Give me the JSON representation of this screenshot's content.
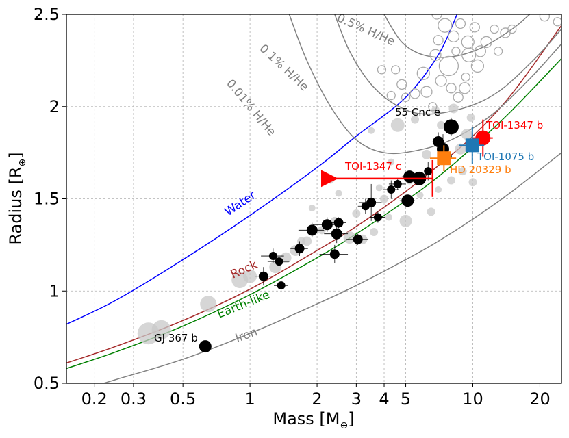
{
  "chart_data": {
    "type": "scatter",
    "xlabel": "Mass [M",
    "xlabel_sub": "⊕",
    "xlabel_end": "]",
    "ylabel": "Radius [R",
    "ylabel_sub": "⊕",
    "ylabel_end": "]",
    "x_scale": "log",
    "xlim": [
      0.15,
      25
    ],
    "ylim": [
      0.5,
      2.5
    ],
    "grid": true,
    "x_ticks": [
      {
        "value": 0.2,
        "label": "0.2"
      },
      {
        "value": 0.3,
        "label": "0.3"
      },
      {
        "value": 0.5,
        "label": "0.5"
      },
      {
        "value": 1,
        "label": "1"
      },
      {
        "value": 2,
        "label": "2"
      },
      {
        "value": 3,
        "label": "3"
      },
      {
        "value": 4,
        "label": "4"
      },
      {
        "value": 5,
        "label": "5"
      },
      {
        "value": 10,
        "label": "10"
      },
      {
        "value": 20,
        "label": "20"
      }
    ],
    "y_ticks": [
      {
        "value": 0.5,
        "label": "0.5"
      },
      {
        "value": 1.0,
        "label": "1"
      },
      {
        "value": 1.5,
        "label": "1.5"
      },
      {
        "value": 2.0,
        "label": "2"
      },
      {
        "value": 2.5,
        "label": "2.5"
      }
    ],
    "composition_curves": [
      {
        "name": "Water",
        "color": "#0000ff",
        "points": [
          [
            0.15,
            0.82
          ],
          [
            0.25,
            0.95
          ],
          [
            0.5,
            1.17
          ],
          [
            1,
            1.41
          ],
          [
            2,
            1.67
          ],
          [
            3,
            1.84
          ],
          [
            5,
            2.05
          ],
          [
            7,
            2.28
          ],
          [
            8.5,
            2.5
          ]
        ]
      },
      {
        "name": "Rock",
        "color": "#a52a2a",
        "points": [
          [
            0.15,
            0.61
          ],
          [
            0.25,
            0.7
          ],
          [
            0.5,
            0.84
          ],
          [
            1,
            1.01
          ],
          [
            2,
            1.22
          ],
          [
            3,
            1.35
          ],
          [
            5,
            1.54
          ],
          [
            7,
            1.68
          ],
          [
            10,
            1.84
          ],
          [
            15,
            2.07
          ],
          [
            25,
            2.44
          ]
        ]
      },
      {
        "name": "Earth-like",
        "color": "#008000",
        "points": [
          [
            0.15,
            0.58
          ],
          [
            0.25,
            0.67
          ],
          [
            0.5,
            0.81
          ],
          [
            1,
            0.98
          ],
          [
            2,
            1.18
          ],
          [
            3,
            1.31
          ],
          [
            5,
            1.49
          ],
          [
            7,
            1.62
          ],
          [
            10,
            1.78
          ],
          [
            15,
            1.98
          ],
          [
            25,
            2.26
          ]
        ]
      },
      {
        "name": "Iron",
        "color": "#808080",
        "points": [
          [
            0.15,
            0.44
          ],
          [
            0.25,
            0.52
          ],
          [
            0.5,
            0.63
          ],
          [
            1,
            0.77
          ],
          [
            2,
            0.93
          ],
          [
            3,
            1.03
          ],
          [
            5,
            1.17
          ],
          [
            7,
            1.27
          ],
          [
            10,
            1.39
          ],
          [
            15,
            1.54
          ],
          [
            25,
            1.75
          ]
        ]
      },
      {
        "name": "0.01% H/He",
        "color": "#808080",
        "points": [
          [
            1.5,
            2.5
          ],
          [
            1.8,
            2.25
          ],
          [
            2.3,
            2.0
          ],
          [
            3.0,
            1.82
          ],
          [
            4.0,
            1.75
          ],
          [
            5.5,
            1.76
          ],
          [
            8,
            1.82
          ],
          [
            12,
            1.95
          ],
          [
            18,
            2.15
          ],
          [
            25,
            2.34
          ]
        ]
      },
      {
        "name": "0.1% H/He",
        "color": "#808080",
        "points": [
          [
            2.4,
            2.5
          ],
          [
            2.8,
            2.3
          ],
          [
            3.5,
            2.12
          ],
          [
            4.5,
            2.01
          ],
          [
            6,
            1.96
          ],
          [
            9,
            1.99
          ],
          [
            13,
            2.08
          ],
          [
            19,
            2.26
          ],
          [
            25,
            2.42
          ]
        ]
      },
      {
        "name": "0.5% H/He",
        "color": "#808080",
        "points": [
          [
            4.0,
            2.5
          ],
          [
            4.8,
            2.35
          ],
          [
            6,
            2.28
          ],
          [
            8,
            2.27
          ],
          [
            11,
            2.32
          ],
          [
            15,
            2.42
          ],
          [
            18,
            2.5
          ]
        ]
      }
    ],
    "curve_labels": [
      {
        "text": "Water",
        "color": "#0000ff"
      },
      {
        "text": "Rock",
        "color": "#a52a2a"
      },
      {
        "text": "Earth-like",
        "color": "#008000"
      },
      {
        "text": "Iron",
        "color": "#808080"
      },
      {
        "text": "0.01% H/He",
        "color": "#808080"
      },
      {
        "text": "0.1% H/He",
        "color": "#808080"
      },
      {
        "text": "0.5% H/He",
        "color": "#808080"
      }
    ],
    "background_sample": {
      "description_color": "#c0c0c0",
      "filled": [
        [
          0.35,
          0.77,
          16
        ],
        [
          0.4,
          0.79,
          14
        ],
        [
          0.65,
          0.93,
          12
        ],
        [
          0.9,
          1.06,
          12
        ],
        [
          1.0,
          1.08,
          10
        ],
        [
          1.3,
          1.13,
          9
        ],
        [
          1.45,
          1.18,
          8
        ],
        [
          1.6,
          1.22,
          8
        ],
        [
          1.8,
          1.27,
          7
        ],
        [
          2.1,
          1.33,
          6
        ],
        [
          2.4,
          1.38,
          6
        ],
        [
          2.8,
          1.29,
          9
        ],
        [
          3.2,
          1.28,
          7
        ],
        [
          3.0,
          1.42,
          6
        ],
        [
          4.0,
          1.5,
          6
        ],
        [
          5.0,
          1.38,
          9
        ],
        [
          5.2,
          1.6,
          6
        ],
        [
          6.5,
          1.43,
          6
        ],
        [
          7.0,
          1.55,
          5
        ],
        [
          8.0,
          1.6,
          6
        ],
        [
          9.0,
          1.65,
          6
        ],
        [
          8.8,
          1.77,
          8
        ],
        [
          9.4,
          1.85,
          8
        ],
        [
          4.6,
          1.9,
          10
        ],
        [
          5.5,
          1.93,
          6
        ],
        [
          7.2,
          1.9,
          6
        ],
        [
          6.8,
          1.98,
          6
        ],
        [
          8.2,
          1.99,
          7
        ],
        [
          9.8,
          1.94,
          6
        ],
        [
          3.5,
          1.87,
          5
        ],
        [
          4.3,
          1.7,
          5
        ],
        [
          2.5,
          1.53,
          5
        ],
        [
          1.9,
          1.45,
          5
        ],
        [
          3.6,
          1.32,
          6
        ],
        [
          4.2,
          1.4,
          5
        ],
        [
          6.2,
          1.74,
          7
        ],
        [
          7.5,
          1.72,
          8
        ],
        [
          10,
          1.59,
          6
        ],
        [
          5.8,
          1.52,
          5
        ],
        [
          1.7,
          1.27,
          6
        ],
        [
          3.8,
          1.56,
          5
        ],
        [
          2.3,
          1.6,
          5
        ]
      ],
      "hollow": [
        [
          7.5,
          2.44,
          10
        ],
        [
          8.2,
          2.38,
          8
        ],
        [
          8.8,
          2.45,
          7
        ],
        [
          9.5,
          2.35,
          9
        ],
        [
          10.2,
          2.43,
          7
        ],
        [
          11.5,
          2.35,
          8
        ],
        [
          12.5,
          2.42,
          6
        ],
        [
          14,
          2.4,
          7
        ],
        [
          7.8,
          2.22,
          14
        ],
        [
          9.6,
          2.28,
          10
        ],
        [
          10.5,
          2.22,
          9
        ],
        [
          9.2,
          2.1,
          8
        ],
        [
          8.6,
          2.05,
          7
        ],
        [
          7.2,
          2.14,
          8
        ],
        [
          6.2,
          2.08,
          8
        ],
        [
          5.5,
          2.07,
          7
        ],
        [
          4.8,
          2.12,
          7
        ],
        [
          4.3,
          2.06,
          6
        ],
        [
          5.0,
          2.05,
          6
        ],
        [
          6.6,
          2.0,
          6
        ],
        [
          8.0,
          2.1,
          7
        ],
        [
          9.3,
          2.16,
          6
        ],
        [
          10.8,
          2.3,
          8
        ],
        [
          13.0,
          2.3,
          6
        ],
        [
          15,
          2.42,
          6
        ],
        [
          21,
          2.49,
          7
        ],
        [
          24,
          2.46,
          6
        ],
        [
          6.8,
          2.28,
          8
        ],
        [
          6.0,
          2.18,
          9
        ],
        [
          4.5,
          2.2,
          6
        ],
        [
          3.9,
          2.2,
          6
        ],
        [
          6.9,
          2.5,
          7
        ],
        [
          7.0,
          2.36,
          7
        ],
        [
          8.4,
          2.3,
          6
        ]
      ]
    },
    "measured_planets": [
      [
        0.63,
        0.7,
        9,
        0,
        0,
        0.01,
        0.01
      ],
      [
        1.15,
        1.08,
        7,
        0.1,
        0.1,
        0.05,
        0.05
      ],
      [
        1.27,
        1.19,
        6,
        0.15,
        0.15,
        0.04,
        0.04
      ],
      [
        1.35,
        1.16,
        6,
        0.15,
        0.15,
        0.08,
        0.08
      ],
      [
        1.38,
        1.03,
        6,
        0.1,
        0.1,
        0.03,
        0.03
      ],
      [
        1.67,
        1.23,
        7,
        0.15,
        0.15,
        0.04,
        0.04
      ],
      [
        1.9,
        1.33,
        8,
        0.25,
        0.25,
        0.04,
        0.04
      ],
      [
        2.22,
        1.36,
        8,
        0.3,
        0.3,
        0.04,
        0.04
      ],
      [
        2.5,
        1.37,
        7,
        0.2,
        0.2,
        0.03,
        0.03
      ],
      [
        2.45,
        1.31,
        8,
        0.3,
        0.3,
        0.05,
        0.05
      ],
      [
        2.4,
        1.2,
        7,
        0.35,
        0.35,
        0.05,
        0.05
      ],
      [
        3.05,
        1.28,
        7,
        0.35,
        0.35,
        0.03,
        0.03
      ],
      [
        3.3,
        1.46,
        6,
        0.25,
        0.25,
        0.04,
        0.04
      ],
      [
        3.5,
        1.48,
        7,
        0.4,
        0.4,
        0.1,
        0.1
      ],
      [
        3.75,
        1.4,
        6,
        0.3,
        0.3,
        0.03,
        0.03
      ],
      [
        4.3,
        1.55,
        6,
        0.35,
        0.35,
        0.05,
        0.05
      ],
      [
        4.6,
        1.58,
        6,
        0.4,
        0.4,
        0.03,
        0.03
      ],
      [
        5.1,
        1.49,
        9,
        0.4,
        0.4,
        0.03,
        0.03
      ],
      [
        5.2,
        1.62,
        9,
        0.4,
        0.4,
        0.03,
        0.03
      ],
      [
        5.75,
        1.61,
        10,
        0.3,
        0.3,
        0.03,
        0.03
      ],
      [
        6.3,
        1.65,
        6,
        0.2,
        0.2,
        0.05,
        0.05
      ],
      [
        7.0,
        1.81,
        8,
        0.4,
        0.4,
        0.05,
        0.05
      ],
      [
        7.35,
        1.77,
        9,
        0.3,
        0.3,
        0.08,
        0.08
      ],
      [
        7.6,
        1.73,
        8,
        0.2,
        0.2,
        0.04,
        0.04
      ],
      [
        8.0,
        1.89,
        11,
        0.3,
        0.3,
        0.05,
        0.05
      ]
    ],
    "highlighted": [
      {
        "label": "TOI-1347 b",
        "color": "#ff0000",
        "marker": "circle",
        "x": 11.1,
        "y": 1.83,
        "xerr": 1.2,
        "yerr": 0.1
      },
      {
        "label": "TOI-1075 b",
        "color": "#1f77b4",
        "marker": "square",
        "x": 9.95,
        "y": 1.79,
        "xerr": 1.3,
        "yerr": 0.1
      },
      {
        "label": "HD 20329 b",
        "color": "#ff7f0e",
        "marker": "square",
        "x": 7.42,
        "y": 1.72,
        "xerr": 1.0,
        "yerr": 0.07
      },
      {
        "label": "TOI-1347 c",
        "color": "#ff0000",
        "marker": "upper-limit-arrow",
        "x": 6.6,
        "y": 1.61,
        "arrow_to_x": 2.4,
        "yerr": 0.1
      }
    ],
    "annotations": [
      {
        "text": "55 Cnc e",
        "color": "#000000"
      },
      {
        "text": "GJ 367 b",
        "color": "#000000"
      }
    ]
  }
}
